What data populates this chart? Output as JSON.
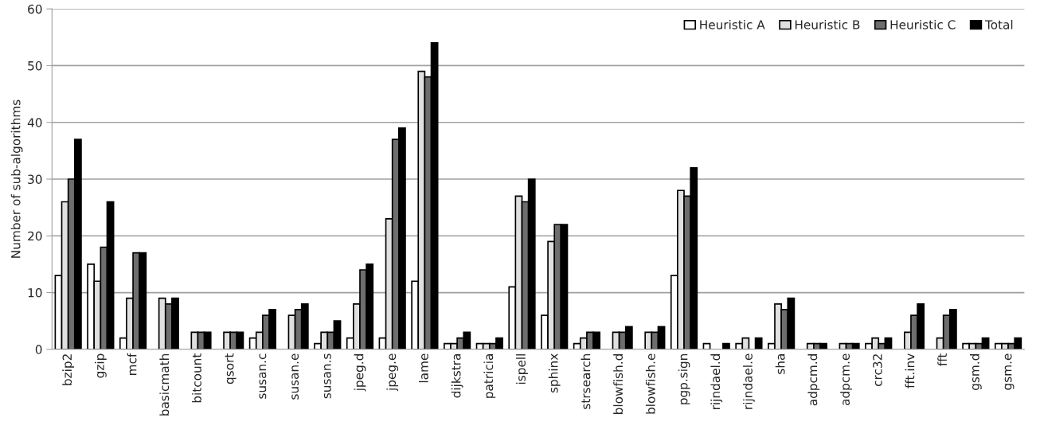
{
  "chart_data": {
    "type": "bar",
    "ylabel": "Number of sub-algorithms",
    "categories": [
      "bzip2",
      "gzip",
      "mcf",
      "basicmath",
      "bitcount",
      "qsort",
      "susan.c",
      "susan.e",
      "susan.s",
      "jpeg.d",
      "jpeg.e",
      "lame",
      "dijkstra",
      "patricia",
      "ispell",
      "sphinx",
      "strsearch",
      "blowfish.d",
      "blowfish.e",
      "pgp.sign",
      "rijndael.d",
      "rijndael.e",
      "sha",
      "adpcm.d",
      "adpcm.e",
      "crc32",
      "fft.inv",
      "fft",
      "gsm.d",
      "gsm.e"
    ],
    "series": [
      {
        "name": "Heuristic A",
        "color": "#ffffff",
        "values": [
          13,
          15,
          2,
          0,
          0,
          0,
          2,
          0,
          1,
          2,
          2,
          12,
          1,
          1,
          11,
          6,
          1,
          0,
          0,
          13,
          1,
          1,
          1,
          0,
          0,
          1,
          0,
          0,
          1,
          1
        ]
      },
      {
        "name": "Heuristic B",
        "color": "#e0e0e0",
        "values": [
          26,
          12,
          9,
          9,
          3,
          3,
          3,
          6,
          3,
          8,
          23,
          49,
          1,
          1,
          27,
          19,
          2,
          3,
          3,
          28,
          0,
          2,
          8,
          1,
          1,
          2,
          3,
          2,
          1,
          1
        ]
      },
      {
        "name": "Heuristic C",
        "color": "#6e6e6e",
        "values": [
          30,
          18,
          17,
          8,
          3,
          3,
          6,
          7,
          3,
          14,
          37,
          48,
          2,
          1,
          26,
          22,
          3,
          3,
          3,
          27,
          0,
          0,
          7,
          1,
          1,
          1,
          6,
          6,
          1,
          1
        ]
      },
      {
        "name": "Total",
        "color": "#000000",
        "values": [
          37,
          26,
          17,
          9,
          3,
          3,
          7,
          8,
          5,
          15,
          39,
          54,
          3,
          2,
          30,
          22,
          3,
          4,
          4,
          32,
          1,
          2,
          9,
          1,
          1,
          2,
          8,
          7,
          2,
          2
        ]
      }
    ],
    "ylim": [
      0,
      60
    ],
    "yticks": [
      0,
      10,
      20,
      30,
      40,
      50,
      60
    ],
    "grid": "y",
    "legend": "top right"
  }
}
